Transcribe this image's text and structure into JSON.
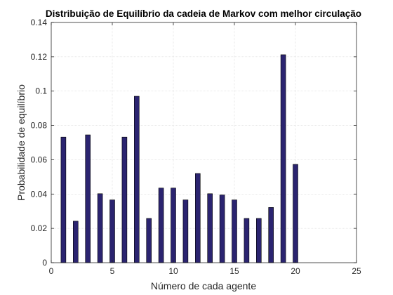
{
  "chart_data": {
    "type": "bar",
    "title": "Distribuição de Equilíbrio da cadeia de Markov com melhor circulação",
    "xlabel": "Número de cada agente",
    "ylabel": "Probabilidade de equilíbrio",
    "x": [
      1,
      2,
      3,
      4,
      5,
      6,
      7,
      8,
      9,
      10,
      11,
      12,
      13,
      14,
      15,
      16,
      17,
      18,
      19,
      20
    ],
    "values": [
      0.0732,
      0.0242,
      0.0745,
      0.0402,
      0.0366,
      0.0732,
      0.097,
      0.0258,
      0.0435,
      0.0435,
      0.0366,
      0.052,
      0.0402,
      0.0395,
      0.0366,
      0.0258,
      0.0258,
      0.0322,
      0.1212,
      0.0573
    ],
    "xlim": [
      0,
      25
    ],
    "ylim": [
      0,
      0.14
    ],
    "xticks": [
      0,
      5,
      10,
      15,
      20,
      25
    ],
    "yticks": [
      0,
      0.02,
      0.04,
      0.06,
      0.08,
      0.1,
      0.12,
      0.14
    ],
    "xtick_labels": [
      "0",
      "5",
      "10",
      "15",
      "20",
      "25"
    ],
    "ytick_labels": [
      "0",
      "0.02",
      "0.04",
      "0.06",
      "0.08",
      "0.1",
      "0.12",
      "0.14"
    ],
    "grid": true,
    "bar_color": "#2b2470"
  }
}
